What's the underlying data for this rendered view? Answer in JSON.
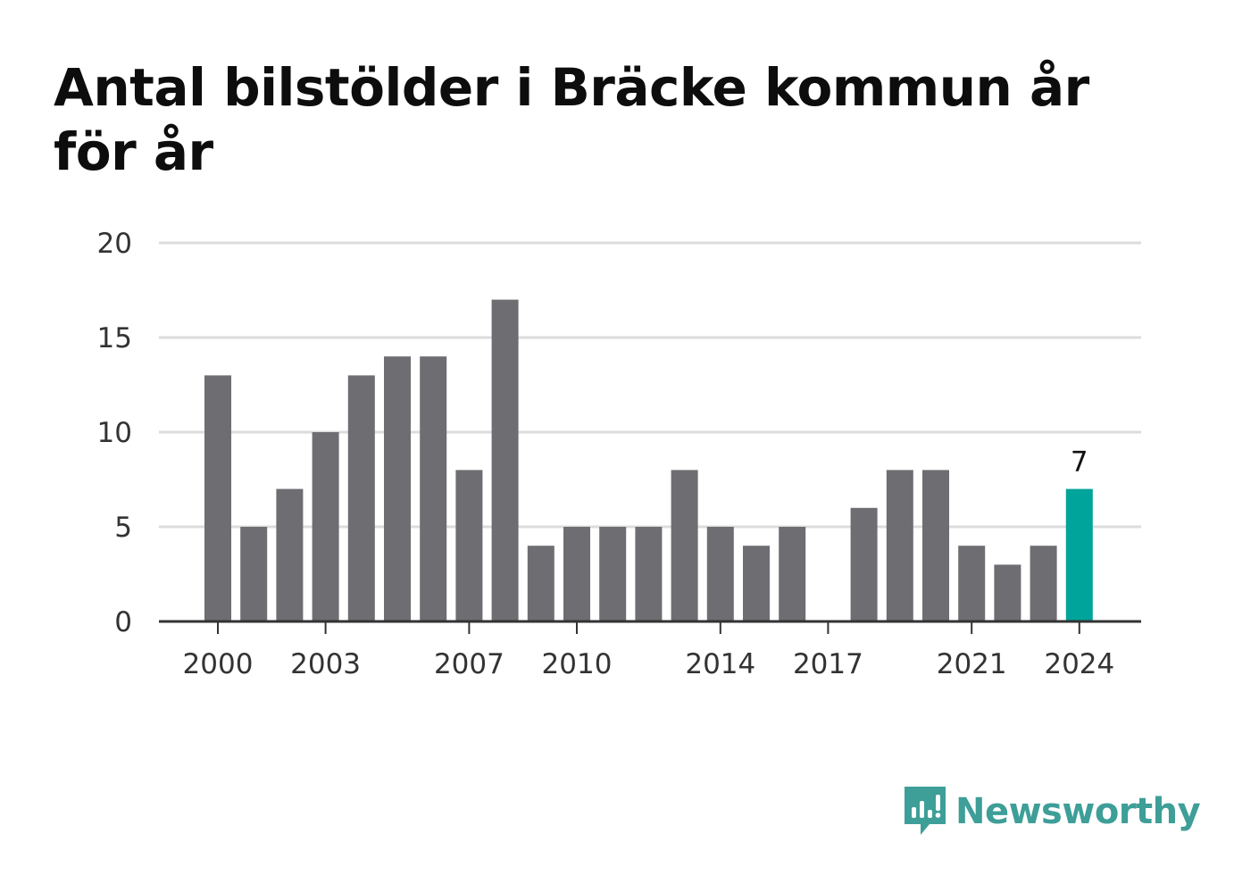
{
  "title": "Antal bilstölder i Bräcke kommun år för år",
  "brand": {
    "name": "Newsworthy",
    "icon": "newsworthy-logo-icon",
    "color": "#3e9e98"
  },
  "chart_data": {
    "type": "bar",
    "title": "Antal bilstölder i Bräcke kommun år för år",
    "xlabel": "",
    "ylabel": "",
    "x": [
      2000,
      2001,
      2002,
      2003,
      2004,
      2005,
      2006,
      2007,
      2008,
      2009,
      2010,
      2011,
      2012,
      2013,
      2014,
      2015,
      2016,
      2017,
      2018,
      2019,
      2020,
      2021,
      2022,
      2023,
      2024
    ],
    "values": [
      13,
      5,
      7,
      10,
      13,
      14,
      14,
      8,
      17,
      4,
      5,
      5,
      5,
      8,
      5,
      4,
      5,
      0,
      6,
      8,
      8,
      4,
      3,
      4,
      7
    ],
    "ylim": [
      0,
      20
    ],
    "yticks": [
      "0",
      "5",
      "10",
      "15",
      "20"
    ],
    "xticks": [
      "2000",
      "2003",
      "2007",
      "2010",
      "2014",
      "2017",
      "2021",
      "2024"
    ],
    "highlight": {
      "x": 2024,
      "label": "7"
    },
    "grid": true,
    "colors": {
      "bar": "#6e6d72",
      "highlight": "#00a49a",
      "grid": "#dcdcdc",
      "axis": "#333333"
    }
  }
}
